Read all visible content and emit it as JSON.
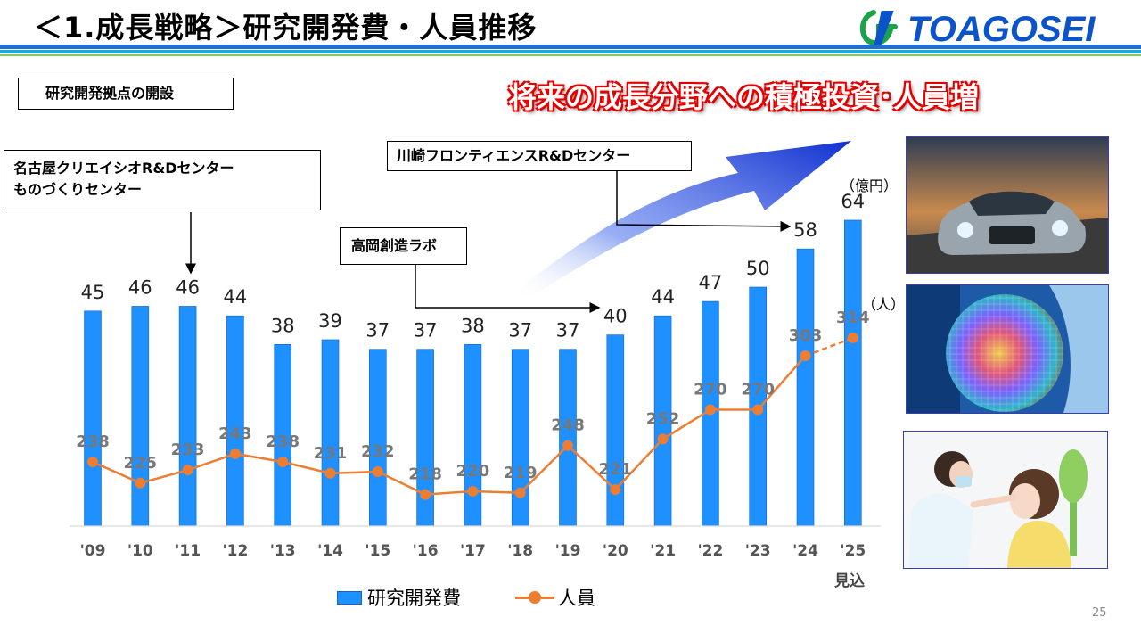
{
  "header": {
    "title": "＜1.成長戦略＞研究開発費・人員推移",
    "logo_text": "TOAGOSEI"
  },
  "labels": {
    "opening": "研究開発拠点の開設",
    "nagoya_line1": "名古屋クリエイシオR&Dセンター",
    "nagoya_line2": "ものづくりセンター",
    "kawasaki": "川崎フロンティエンスR&Dセンター",
    "takaoka": "高岡創造ラボ",
    "headline": "将来の成長分野への積極投資･人員増",
    "unit_rd": "（億円）",
    "unit_staff": "（人）",
    "estimate": "見込",
    "page": "25"
  },
  "legend": {
    "rd": "研究開発費",
    "staff": "人員"
  },
  "colors": {
    "bar": "#1e90ff",
    "line": "#ed7d31",
    "arrow": "#1a3fd8",
    "headline": "#e00000"
  },
  "images": {
    "car": "car-photo",
    "wafer": "wafer-photo",
    "kid": "doctor-child-photo"
  },
  "chart_data": {
    "type": "bar",
    "categories": [
      "'09",
      "'10",
      "'11",
      "'12",
      "'13",
      "'14",
      "'15",
      "'16",
      "'17",
      "'18",
      "'19",
      "'20",
      "'21",
      "'22",
      "'23",
      "'24",
      "'25"
    ],
    "series": [
      {
        "name": "研究開発費",
        "type": "bar",
        "values": [
          45,
          46,
          46,
          44,
          38,
          39,
          37,
          37,
          38,
          37,
          37,
          40,
          44,
          47,
          50,
          58,
          64
        ]
      },
      {
        "name": "人員",
        "type": "line",
        "values": [
          238,
          225,
          233,
          243,
          238,
          231,
          232,
          218,
          220,
          219,
          248,
          221,
          252,
          270,
          270,
          303,
          314
        ],
        "dashed_last_segment": true
      }
    ],
    "title": "",
    "xlabel": "",
    "ylabel": "",
    "grid": false,
    "legend": "bottom"
  }
}
